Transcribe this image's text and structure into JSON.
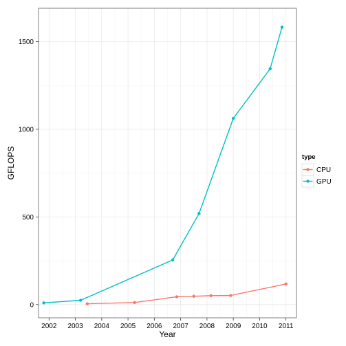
{
  "chart_data": {
    "type": "line",
    "xlabel": "Year",
    "ylabel": "GFLOPS",
    "x_ticks": [
      2002,
      2003,
      2004,
      2005,
      2006,
      2007,
      2008,
      2009,
      2010,
      2011
    ],
    "y_ticks": [
      0,
      500,
      1000,
      1500
    ],
    "xlim": [
      2001.6,
      2011.4
    ],
    "ylim": [
      -75,
      1690
    ],
    "grid": true,
    "legend": {
      "title": "type",
      "placement": "right"
    },
    "series": [
      {
        "name": "CPU",
        "color": "#F8766D",
        "points": [
          {
            "x": 2003.45,
            "y": 5
          },
          {
            "x": 2005.25,
            "y": 12
          },
          {
            "x": 2006.85,
            "y": 45
          },
          {
            "x": 2007.5,
            "y": 48
          },
          {
            "x": 2008.15,
            "y": 51
          },
          {
            "x": 2008.9,
            "y": 52
          },
          {
            "x": 2011.0,
            "y": 118
          }
        ]
      },
      {
        "name": "GPU",
        "color": "#00BFC4",
        "points": [
          {
            "x": 2001.8,
            "y": 10
          },
          {
            "x": 2003.2,
            "y": 25
          },
          {
            "x": 2006.7,
            "y": 255
          },
          {
            "x": 2007.7,
            "y": 520
          },
          {
            "x": 2009.0,
            "y": 1062
          },
          {
            "x": 2010.4,
            "y": 1345
          },
          {
            "x": 2010.85,
            "y": 1582
          }
        ]
      }
    ]
  }
}
